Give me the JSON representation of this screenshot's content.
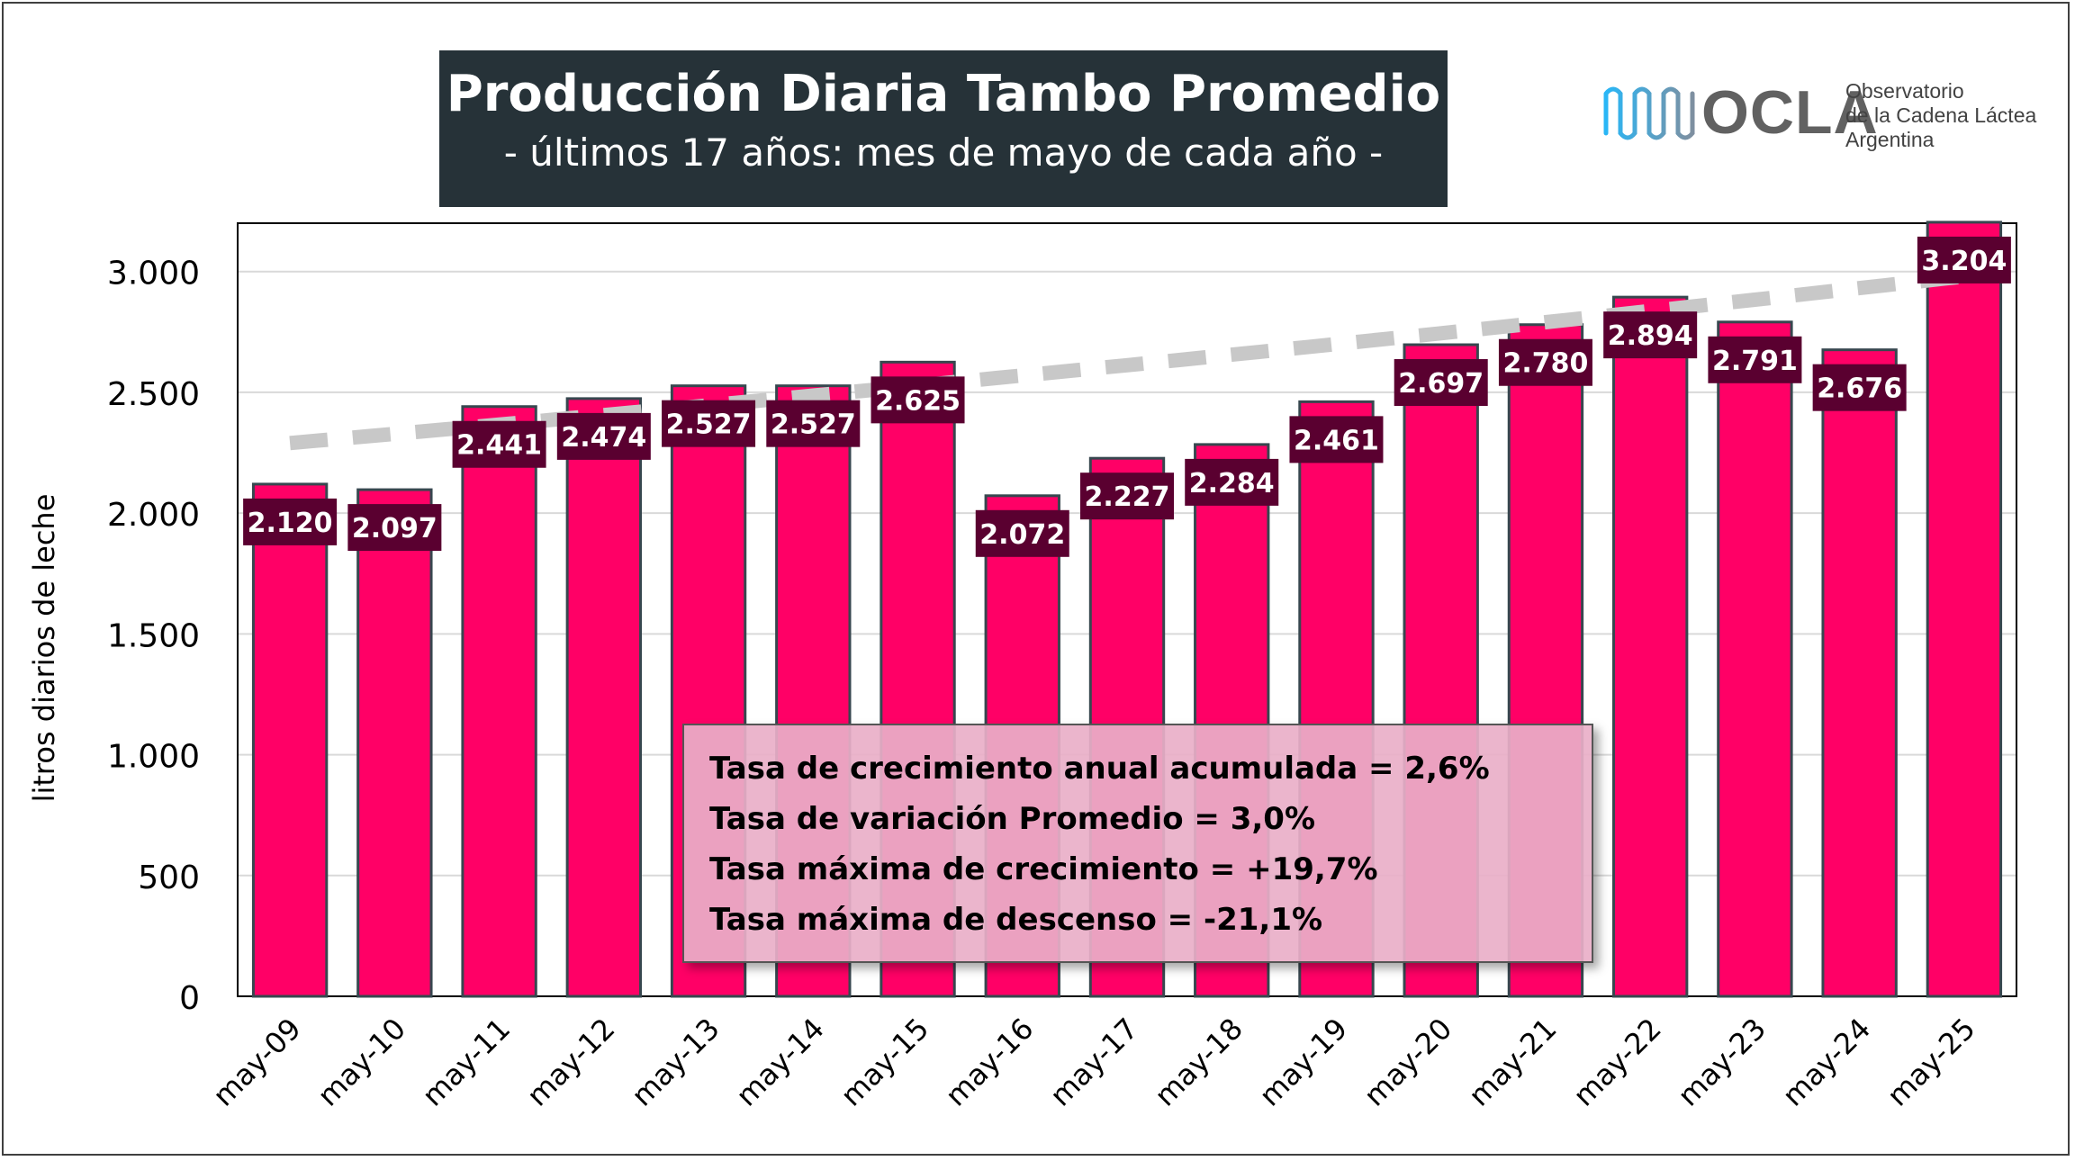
{
  "header": {
    "title": "Producción Diaria Tambo Promedio",
    "subtitle": "- últimos 17 años: mes de mayo de cada año -"
  },
  "logo": {
    "name": "OCLA",
    "line1": "Observatorio",
    "line2": "de la Cadena Láctea",
    "line3": "Argentina"
  },
  "stats": {
    "line1": "Tasa de crecimiento anual acumulada = 2,6%",
    "line2": "Tasa de variación Promedio = 3,0%",
    "line3": "Tasa máxima de crecimiento = +19,7%",
    "line4": "Tasa máxima de descenso = -21,1%"
  },
  "chart_data": {
    "type": "bar",
    "title": "Producción Diaria Tambo Promedio",
    "subtitle": "- últimos 17 años: mes de mayo de cada año -",
    "xlabel": "",
    "ylabel": "litros diarios de leche",
    "categories": [
      "may-09",
      "may-10",
      "may-11",
      "may-12",
      "may-13",
      "may-14",
      "may-15",
      "may-16",
      "may-17",
      "may-18",
      "may-19",
      "may-20",
      "may-21",
      "may-22",
      "may-23",
      "may-24",
      "may-25"
    ],
    "values": [
      2120,
      2097,
      2441,
      2474,
      2527,
      2527,
      2625,
      2072,
      2227,
      2284,
      2461,
      2697,
      2780,
      2894,
      2791,
      2676,
      3204
    ],
    "value_labels": [
      "2.120",
      "2.097",
      "2.441",
      "2.474",
      "2.527",
      "2.527",
      "2.625",
      "2.072",
      "2.227",
      "2.284",
      "2.461",
      "2.697",
      "2.780",
      "2.894",
      "2.791",
      "2.676",
      "3.204"
    ],
    "yticks": [
      0,
      500,
      1000,
      1500,
      2000,
      2500,
      3000
    ],
    "ytick_labels": [
      "0",
      "500",
      "1.000",
      "1.500",
      "2.000",
      "2.500",
      "3.000"
    ],
    "ylim": [
      0,
      3200
    ],
    "trendline": {
      "style": "dashed",
      "type": "exponential",
      "start": 2290,
      "end": 2980
    },
    "grid": true,
    "colors": {
      "bar": "#ff0066",
      "bar_edge": "#37474f",
      "label_bg": "#5a0030",
      "label_text": "#ffffff",
      "trend": "#c8c8c8",
      "grid": "#d9d9d9"
    }
  }
}
